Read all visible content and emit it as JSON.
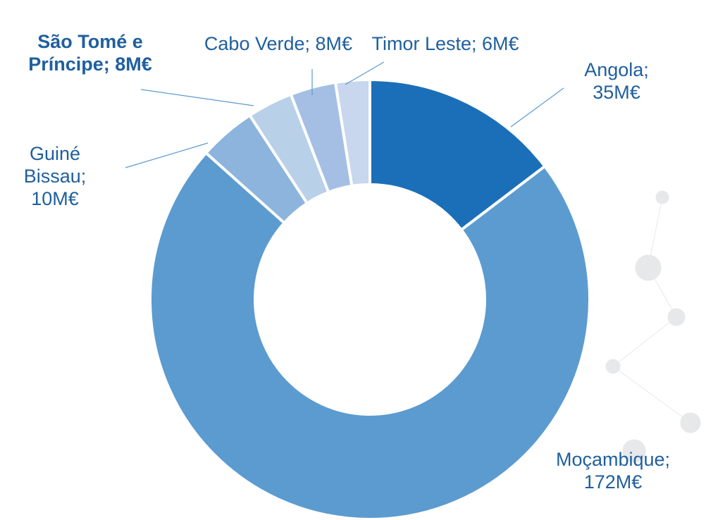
{
  "chart_data": {
    "type": "donut",
    "categories": [
      "Angola",
      "Moçambique",
      "Guiné Bissau",
      "São Tomé e Príncipe",
      "Cabo Verde",
      "Timor Leste"
    ],
    "values": [
      35,
      172,
      10,
      8,
      8,
      6
    ],
    "value_labels": [
      "Angola; 35M€",
      "Moçambique; 172M€",
      "Guiné Bissau; 10M€",
      "São Tomé e Príncipe; 8M€",
      "Cabo Verde; 8M€",
      "Timor Leste; 6M€"
    ],
    "colors": [
      "#1a6fb8",
      "#5b9bd0",
      "#8cb4dc",
      "#b8d0e8",
      "#a5bfe4",
      "#c8d6ee"
    ],
    "highlighted": "São Tomé e Príncipe"
  }
}
